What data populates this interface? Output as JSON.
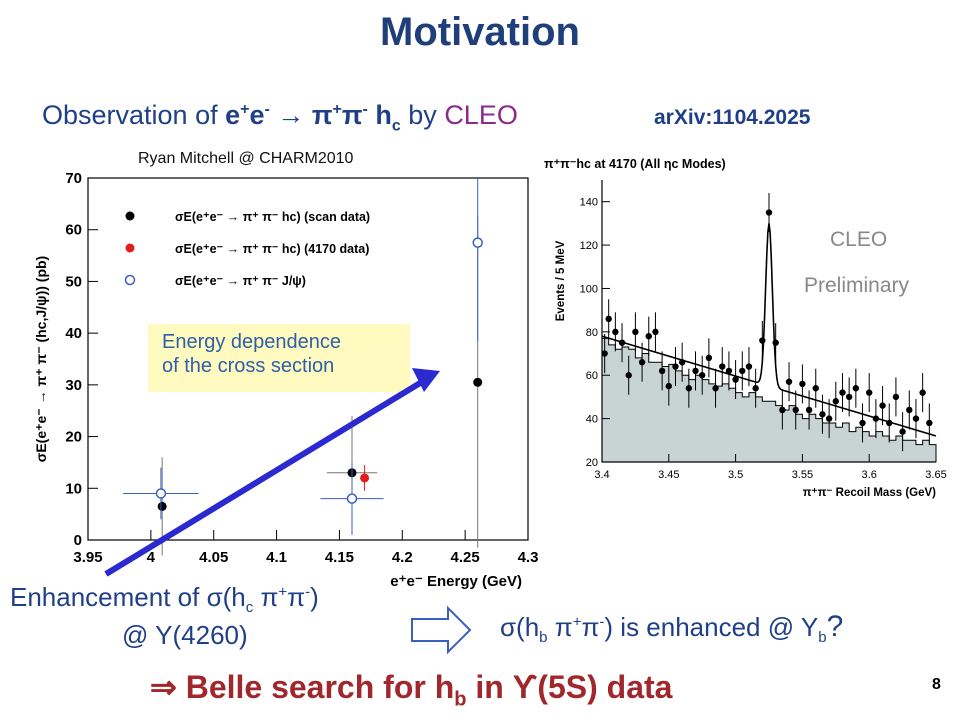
{
  "title": "Motivation",
  "observation": {
    "prefix": "Observation of ",
    "ee": "e",
    "to": " → ",
    "pipi": "π",
    "hc": "h",
    "hc_sub": "c",
    "by": " by ",
    "cleo": "CLEO"
  },
  "arxiv": "arXiv:1104.2025",
  "credit": "Ryan Mitchell @ CHARM2010",
  "callout": {
    "line1": "Energy dependence",
    "line2": "of the cross section"
  },
  "enhancement": {
    "line1_prefix": "Enhancement of ",
    "line1_sigma": "σ",
    "line1_rest": "(h",
    "line2": "@ Y(4260)"
  },
  "question": {
    "sigma": "σ",
    "text_a": "(h",
    "text_b": ") is enhanced @ Y",
    "qmark": "?"
  },
  "conclusion": {
    "arrow": "⇒",
    "text_a": " Belle search for h",
    "text_b": " in ",
    "upsilon": "ϒ",
    "text_c": "(5S) data"
  },
  "page_number": "8",
  "colors": {
    "title": "#1f3f7a",
    "text": "#1f3f86",
    "cleo": "#8a2a8a",
    "belle": "#a0282c",
    "callout_bg": "#fffbc0",
    "arrow": "#2a2ad0",
    "hist_fill": "#c8d4d4"
  },
  "chart_data": [
    {
      "type": "scatter",
      "xlabel": "e⁺e⁻ Energy  (GeV)",
      "ylabel": "σE(e⁺e⁻ → π⁺ π⁻ (hc,J/ψ)) (pb)",
      "xlim": [
        3.95,
        4.3
      ],
      "ylim": [
        0,
        70
      ],
      "x_ticks": [
        "3.95",
        "4",
        "4.05",
        "4.1",
        "4.15",
        "4.2",
        "4.25",
        "4.3"
      ],
      "y_ticks": [
        "0",
        "10",
        "20",
        "30",
        "40",
        "50",
        "60",
        "70"
      ],
      "legend": [
        {
          "marker": "filled-black",
          "label": "σE(e⁺e⁻ → π⁺ π⁻ hc) (scan data)"
        },
        {
          "marker": "filled-red",
          "label": "σE(e⁺e⁻ → π⁺ π⁻ hc) (4170 data)"
        },
        {
          "marker": "open-blue",
          "label": "σE(e⁺e⁻ → π⁺ π⁻ J/ψ)"
        }
      ],
      "series": [
        {
          "name": "scan data",
          "color": "#000000",
          "filled": true,
          "points": [
            {
              "x": 4.009,
              "y": 6.5,
              "xerr": 0.0,
              "yerr": 9.5
            },
            {
              "x": 4.16,
              "y": 13.0,
              "xerr": 0.02,
              "yerr": 11.0
            },
            {
              "x": 4.26,
              "y": 30.5,
              "xerr": 0.0,
              "yerr": 32.0
            }
          ]
        },
        {
          "name": "4170 data",
          "color": "#e02020",
          "filled": true,
          "points": [
            {
              "x": 4.17,
              "y": 12.0,
              "xerr": 0.0,
              "yerr": 2.5
            }
          ]
        },
        {
          "name": "J/psi",
          "color": "#3a5fc0",
          "filled": false,
          "points": [
            {
              "x": 4.008,
              "y": 9.0,
              "xerr": 0.03,
              "yerr": 5.0
            },
            {
              "x": 4.16,
              "y": 8.0,
              "xerr": 0.025,
              "yerr": 7.0
            },
            {
              "x": 4.26,
              "y": 57.5,
              "xerr": 0.0,
              "yerr": 19.0
            }
          ]
        }
      ]
    },
    {
      "type": "histogram",
      "title": "π⁺π⁻hc at 4170 (All ηc Modes)",
      "xlabel": "π⁺π⁻ Recoil Mass  (GeV)",
      "ylabel": "Events / 5 MeV",
      "xlim": [
        3.4,
        3.65
      ],
      "ylim": [
        20,
        150
      ],
      "x_ticks": [
        "3.4",
        "3.45",
        "3.5",
        "3.55",
        "3.6",
        "3.65"
      ],
      "y_ticks": [
        "20",
        "40",
        "60",
        "80",
        "100",
        "120",
        "140"
      ],
      "annotations": [
        "CLEO",
        "Preliminary"
      ],
      "background_hist": [
        77,
        74,
        72,
        73,
        72,
        68,
        70,
        66,
        66,
        64,
        65,
        62,
        60,
        58,
        60,
        58,
        56,
        55,
        56,
        54,
        52,
        50,
        52,
        50,
        48,
        48,
        46,
        44,
        46,
        42,
        40,
        42,
        40,
        38,
        38,
        36,
        38,
        34,
        36,
        34,
        32,
        34,
        32,
        30,
        32,
        30,
        30,
        28,
        30,
        28
      ],
      "points": [
        {
          "x": 3.402,
          "y": 70
        },
        {
          "x": 3.405,
          "y": 86
        },
        {
          "x": 3.41,
          "y": 80
        },
        {
          "x": 3.415,
          "y": 75
        },
        {
          "x": 3.42,
          "y": 60
        },
        {
          "x": 3.425,
          "y": 80
        },
        {
          "x": 3.43,
          "y": 66
        },
        {
          "x": 3.435,
          "y": 78
        },
        {
          "x": 3.44,
          "y": 80
        },
        {
          "x": 3.445,
          "y": 62
        },
        {
          "x": 3.45,
          "y": 55
        },
        {
          "x": 3.455,
          "y": 64
        },
        {
          "x": 3.46,
          "y": 66
        },
        {
          "x": 3.465,
          "y": 54
        },
        {
          "x": 3.47,
          "y": 62
        },
        {
          "x": 3.475,
          "y": 60
        },
        {
          "x": 3.48,
          "y": 68
        },
        {
          "x": 3.485,
          "y": 54
        },
        {
          "x": 3.49,
          "y": 64
        },
        {
          "x": 3.495,
          "y": 62
        },
        {
          "x": 3.5,
          "y": 58
        },
        {
          "x": 3.505,
          "y": 62
        },
        {
          "x": 3.51,
          "y": 64
        },
        {
          "x": 3.515,
          "y": 54
        },
        {
          "x": 3.52,
          "y": 76
        },
        {
          "x": 3.525,
          "y": 135
        },
        {
          "x": 3.53,
          "y": 75
        },
        {
          "x": 3.535,
          "y": 44
        },
        {
          "x": 3.54,
          "y": 57
        },
        {
          "x": 3.545,
          "y": 44
        },
        {
          "x": 3.55,
          "y": 56
        },
        {
          "x": 3.555,
          "y": 44
        },
        {
          "x": 3.56,
          "y": 54
        },
        {
          "x": 3.565,
          "y": 42
        },
        {
          "x": 3.57,
          "y": 40
        },
        {
          "x": 3.575,
          "y": 48
        },
        {
          "x": 3.58,
          "y": 52
        },
        {
          "x": 3.585,
          "y": 50
        },
        {
          "x": 3.59,
          "y": 54
        },
        {
          "x": 3.595,
          "y": 38
        },
        {
          "x": 3.6,
          "y": 52
        },
        {
          "x": 3.605,
          "y": 40
        },
        {
          "x": 3.61,
          "y": 46
        },
        {
          "x": 3.615,
          "y": 38
        },
        {
          "x": 3.62,
          "y": 50
        },
        {
          "x": 3.625,
          "y": 34
        },
        {
          "x": 3.63,
          "y": 44
        },
        {
          "x": 3.635,
          "y": 40
        },
        {
          "x": 3.64,
          "y": 52
        },
        {
          "x": 3.645,
          "y": 38
        }
      ],
      "fit_peak": {
        "mean": 3.525,
        "sigma": 0.0025,
        "height": 75
      }
    }
  ]
}
